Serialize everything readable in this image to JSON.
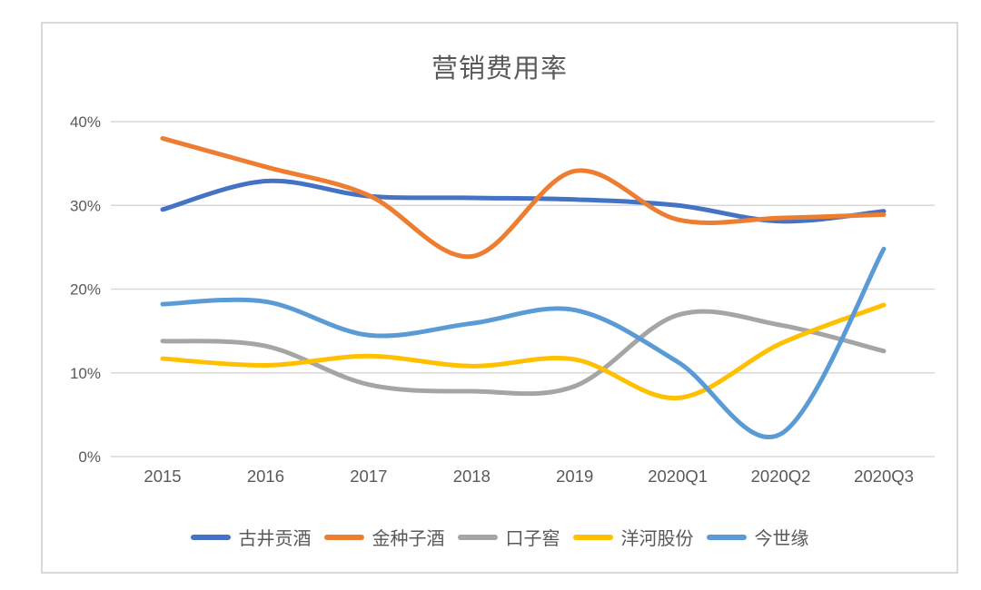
{
  "chart_data": {
    "type": "line",
    "title": "营销费用率",
    "categories": [
      "2015",
      "2016",
      "2017",
      "2018",
      "2019",
      "2020Q1",
      "2020Q2",
      "2020Q3"
    ],
    "y_ticks": [
      "0%",
      "10%",
      "20%",
      "30%",
      "40%"
    ],
    "ylim": [
      0,
      40
    ],
    "grid": true,
    "smooth": true,
    "legend_position": "bottom",
    "series": [
      {
        "name": "古井贡酒",
        "color": "#4472C4",
        "values": [
          29.5,
          32.9,
          31.1,
          30.9,
          30.7,
          30.0,
          28.1,
          29.3
        ]
      },
      {
        "name": "金种子酒",
        "color": "#ED7D31",
        "values": [
          38.0,
          34.6,
          31.2,
          23.9,
          34.1,
          28.3,
          28.5,
          28.9
        ]
      },
      {
        "name": "口子窖",
        "color": "#A5A5A5",
        "values": [
          13.8,
          13.2,
          8.6,
          7.8,
          8.4,
          16.9,
          15.7,
          12.6
        ]
      },
      {
        "name": "洋河股份",
        "color": "#FFC000",
        "values": [
          11.7,
          10.9,
          12.0,
          10.8,
          11.6,
          7.0,
          13.5,
          18.1
        ]
      },
      {
        "name": "今世缘",
        "color": "#5B9BD5",
        "values": [
          18.2,
          18.5,
          14.5,
          15.9,
          17.5,
          11.3,
          2.7,
          24.8
        ]
      }
    ]
  },
  "colors": {
    "text": "#595959",
    "grid": "#D9D9D9",
    "border": "#D9D9D9",
    "background": "#FFFFFF"
  }
}
